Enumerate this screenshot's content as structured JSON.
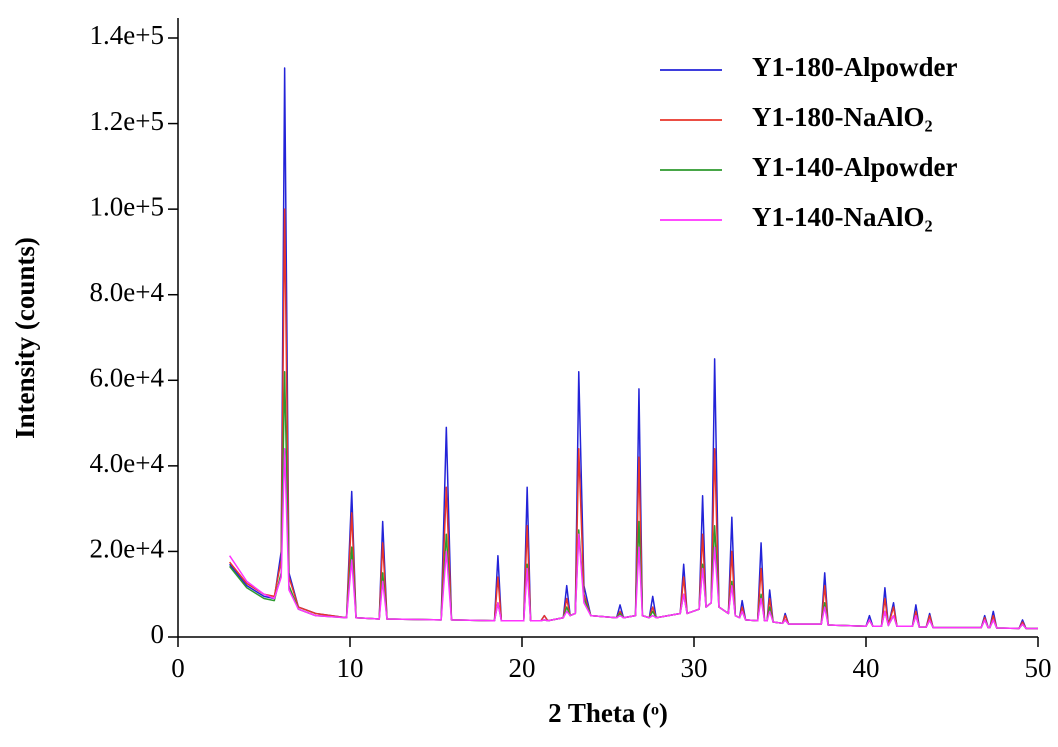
{
  "chart_data": {
    "type": "line",
    "x_label": "2 Theta (ᵒ)",
    "y_label": "Intensity (counts)",
    "xlim": [
      0,
      50
    ],
    "xticks": [
      0,
      10,
      20,
      30,
      40,
      50
    ],
    "ylim": [
      0,
      140000
    ],
    "yticks": [
      0,
      {
        "value": 20000,
        "label": "2.0e+4"
      },
      {
        "value": 40000,
        "label": "4.0e+4"
      },
      {
        "value": 60000,
        "label": "6.0e+4"
      },
      {
        "value": 80000,
        "label": "8.0e+4"
      },
      {
        "value": 100000,
        "label": "1.0e+5"
      },
      {
        "value": 120000,
        "label": "1.2e+5"
      },
      {
        "value": 140000,
        "label": "1.4e+5"
      }
    ],
    "legend": "upper right",
    "x": [
      3,
      4,
      5,
      5.6,
      6,
      6.2,
      6.45,
      7,
      8,
      9.8,
      10.1,
      10.35,
      11.7,
      11.9,
      12.15,
      15.3,
      15.6,
      15.9,
      18.4,
      18.6,
      18.8,
      20.1,
      20.3,
      20.5,
      21.1,
      21.3,
      21.5,
      22.4,
      22.6,
      22.8,
      23.1,
      23.3,
      23.6,
      24,
      25.5,
      25.7,
      25.9,
      26.6,
      26.8,
      27,
      27.4,
      27.6,
      27.8,
      29.2,
      29.4,
      29.6,
      30.3,
      30.5,
      30.7,
      31,
      31.2,
      31.45,
      32,
      32.2,
      32.4,
      32.65,
      32.8,
      33,
      33.7,
      33.9,
      34.1,
      34.25,
      34.4,
      34.6,
      35.15,
      35.3,
      35.5,
      37.4,
      37.6,
      37.8,
      40,
      40.2,
      40.4,
      40.9,
      41.1,
      41.3,
      41.6,
      41.8,
      42.7,
      42.9,
      43.1,
      43.5,
      43.7,
      43.9,
      46.7,
      46.9,
      47.1,
      47.2,
      47.4,
      47.6,
      48.9,
      49.1,
      49.3,
      50
    ],
    "series": [
      {
        "name": "Y1-180-Alpowder",
        "color": "#2323d8",
        "values": [
          17000,
          12000,
          9500,
          9000,
          20000,
          133000,
          15000,
          7000,
          5500,
          4500,
          34000,
          4500,
          4200,
          27000,
          4200,
          4000,
          49000,
          4000,
          3800,
          19000,
          3800,
          3800,
          35000,
          3800,
          3800,
          5000,
          3800,
          4500,
          12000,
          5000,
          5500,
          62000,
          12000,
          5000,
          4500,
          7500,
          4500,
          5000,
          58000,
          5000,
          4500,
          9500,
          4500,
          5500,
          17000,
          5500,
          6500,
          33000,
          7000,
          8000,
          65000,
          7000,
          5500,
          28000,
          5000,
          4500,
          8500,
          4000,
          3800,
          22000,
          3800,
          3800,
          11000,
          3500,
          3200,
          5500,
          3000,
          3000,
          15000,
          2800,
          2500,
          5000,
          2500,
          2500,
          11500,
          2700,
          8000,
          2500,
          2500,
          7500,
          2300,
          2300,
          5500,
          2200,
          2200,
          5000,
          2200,
          2200,
          6000,
          2100,
          2000,
          4000,
          2000,
          2000
        ]
      },
      {
        "name": "Y1-180-NaAlO₂",
        "color": "#e8352a",
        "values": [
          17500,
          12500,
          10000,
          9500,
          18000,
          100000,
          14000,
          7000,
          5500,
          4500,
          29000,
          4500,
          4200,
          22000,
          4200,
          4000,
          35000,
          4000,
          3800,
          14000,
          3800,
          3800,
          26000,
          3800,
          3800,
          5000,
          3800,
          4500,
          9000,
          5000,
          5500,
          44000,
          10000,
          5000,
          4500,
          6000,
          4500,
          5000,
          42000,
          5000,
          4500,
          7000,
          4500,
          5500,
          14000,
          5500,
          6500,
          24000,
          7000,
          8000,
          44000,
          7000,
          5500,
          20000,
          5000,
          4500,
          7000,
          4000,
          3800,
          16000,
          3800,
          3800,
          9000,
          3500,
          3200,
          5000,
          3000,
          3000,
          12000,
          2800,
          2500,
          4000,
          2500,
          2500,
          9000,
          2700,
          7000,
          2500,
          2500,
          6000,
          2300,
          2300,
          5000,
          2200,
          2200,
          4500,
          2200,
          2200,
          5000,
          2100,
          2000,
          3500,
          2000,
          2000
        ]
      },
      {
        "name": "Y1-140-Alpowder",
        "color": "#2e9a2e",
        "values": [
          16500,
          11500,
          9000,
          8500,
          15000,
          62000,
          12000,
          6500,
          5000,
          4500,
          21000,
          4500,
          4200,
          15000,
          4200,
          4000,
          24000,
          4000,
          3800,
          8000,
          3800,
          3800,
          17000,
          3800,
          3800,
          4000,
          3800,
          4500,
          7000,
          5000,
          5500,
          25000,
          9000,
          5000,
          4500,
          5500,
          4500,
          5000,
          27000,
          5000,
          4500,
          6000,
          4500,
          5500,
          10000,
          5500,
          6500,
          17000,
          7000,
          8000,
          26000,
          7000,
          5500,
          13000,
          5000,
          4500,
          6000,
          4000,
          3800,
          10000,
          3800,
          3800,
          7000,
          3500,
          3200,
          4000,
          3000,
          3000,
          8000,
          2800,
          2500,
          4000,
          2500,
          2500,
          6000,
          2700,
          5000,
          2500,
          2500,
          5000,
          2300,
          2300,
          4000,
          2200,
          2200,
          4000,
          2200,
          2200,
          4000,
          2100,
          2000,
          3000,
          2000,
          2000
        ]
      },
      {
        "name": "Y1-140-NaAlO₂",
        "color": "#ff33ff",
        "values": [
          19000,
          13000,
          10000,
          9000,
          14000,
          44000,
          11000,
          6500,
          5000,
          4500,
          18000,
          4500,
          4200,
          13000,
          4200,
          4000,
          20000,
          4000,
          3800,
          8000,
          3800,
          3800,
          16000,
          3800,
          3800,
          4000,
          3800,
          4500,
          6000,
          5000,
          5500,
          24000,
          8000,
          5000,
          4500,
          5000,
          4500,
          5000,
          21000,
          5000,
          4500,
          5000,
          4500,
          5500,
          10000,
          5500,
          6500,
          16000,
          7000,
          8000,
          21000,
          7000,
          5500,
          12000,
          5000,
          4500,
          6000,
          4000,
          3800,
          9000,
          3800,
          3800,
          6000,
          3500,
          3200,
          4000,
          3000,
          3000,
          7000,
          2800,
          2500,
          4000,
          2500,
          2500,
          6000,
          2700,
          5000,
          2500,
          2500,
          5000,
          2300,
          2300,
          4000,
          2200,
          2200,
          4000,
          2200,
          2200,
          4000,
          2100,
          2000,
          3000,
          2000,
          2000
        ]
      }
    ]
  }
}
